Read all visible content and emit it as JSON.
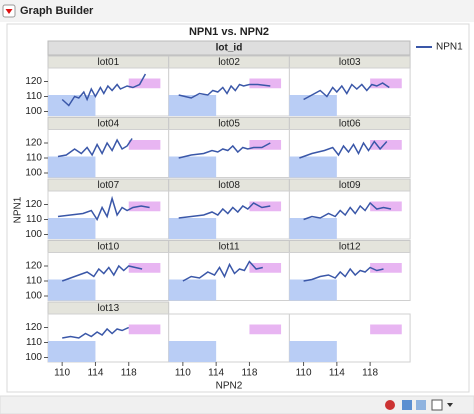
{
  "window": {
    "title": "Graph Builder"
  },
  "chart_data": {
    "type": "line",
    "title": "NPN1 vs. NPN2",
    "x_label": "NPN2",
    "y_label": "NPN1",
    "facet_label": "lot_id",
    "legend_label": "NPN1",
    "color": "#3a57a8",
    "xlim": [
      108.3,
      122.8
    ],
    "xticks": [
      110,
      114,
      118
    ],
    "ylim": [
      97,
      129
    ],
    "yticks": [
      100,
      110,
      120
    ],
    "regions": [
      {
        "xlim": [
          108.3,
          114
        ],
        "ylim": [
          97,
          111
        ],
        "color": "#b9cdf5"
      },
      {
        "xlim": [
          118,
          121.8
        ],
        "ylim": [
          115.5,
          122
        ],
        "color": "#e8b5f2"
      }
    ],
    "panels": [
      {
        "lot": "lot01",
        "x": [
          110,
          110.8,
          111.5,
          112,
          112.6,
          113,
          113.5,
          114,
          114.6,
          115,
          115.5,
          116,
          116.6,
          117,
          117.8,
          118.5,
          119.3,
          120
        ],
        "values": [
          108,
          104,
          110,
          109,
          113,
          108,
          115,
          110,
          116,
          112,
          117,
          114,
          118,
          115,
          117,
          116,
          118,
          125
        ]
      },
      {
        "lot": "lot02",
        "x": [
          109.5,
          111,
          112,
          113,
          113.6,
          114.2,
          114.8,
          115.3,
          115.8,
          116.3,
          116.8,
          117.3,
          118,
          119,
          120.5
        ],
        "values": [
          111,
          109,
          112,
          111,
          114,
          113,
          116,
          112,
          117,
          114,
          118,
          117,
          118,
          118,
          117
        ]
      },
      {
        "lot": "lot03",
        "x": [
          110,
          111,
          112,
          112.8,
          113.5,
          114,
          114.6,
          115.2,
          115.8,
          116.4,
          117,
          117.6,
          118.2,
          118.8,
          119.5,
          120.3
        ],
        "values": [
          108,
          111,
          114,
          110,
          116,
          113,
          117,
          112,
          118,
          115,
          118,
          114,
          118,
          117,
          119,
          116
        ]
      },
      {
        "lot": "lot04",
        "x": [
          109.5,
          110.5,
          111.5,
          112.3,
          113,
          113.6,
          114.2,
          114.8,
          115.4,
          116,
          116.6,
          117.2,
          117.8,
          118.4
        ],
        "values": [
          111,
          112,
          116,
          113,
          117,
          112,
          119,
          113,
          120,
          115,
          122,
          116,
          118,
          123
        ]
      },
      {
        "lot": "lot05",
        "x": [
          109.5,
          111,
          112.5,
          113.5,
          114.2,
          114.8,
          115.4,
          116,
          116.6,
          117.2,
          117.8,
          118.5,
          119.5,
          120.5
        ],
        "values": [
          110,
          112,
          113,
          115,
          114,
          116,
          115,
          118,
          114,
          117,
          116,
          117,
          117,
          120
        ]
      },
      {
        "lot": "lot06",
        "x": [
          109.5,
          111,
          112.5,
          113.5,
          114.2,
          114.8,
          115.4,
          116,
          116.6,
          117.2,
          117.8,
          118.5,
          119.2,
          120
        ],
        "values": [
          110,
          113,
          115,
          117,
          112,
          118,
          114,
          119,
          113,
          120,
          115,
          121,
          116,
          121
        ]
      },
      {
        "lot": "lot07",
        "x": [
          109.5,
          111,
          112.5,
          113.5,
          114.2,
          114.8,
          115.4,
          116,
          116.6,
          117.2,
          117.8,
          118.5,
          119.5,
          120.5
        ],
        "values": [
          112,
          113,
          114,
          116,
          110,
          118,
          112,
          124,
          113,
          118,
          116,
          118,
          119,
          118
        ]
      },
      {
        "lot": "lot08",
        "x": [
          109.5,
          111,
          112.5,
          113.5,
          114.2,
          114.8,
          115.4,
          116,
          116.6,
          117.2,
          117.8,
          118.5,
          119.5,
          120.5
        ],
        "values": [
          111,
          112,
          113,
          115,
          113,
          117,
          114,
          118,
          115,
          119,
          117,
          121,
          118,
          119
        ]
      },
      {
        "lot": "lot09",
        "x": [
          110,
          111,
          112,
          113,
          113.8,
          114.4,
          115,
          115.6,
          116.2,
          116.8,
          117.4,
          118,
          118.8,
          119.6,
          120.5
        ],
        "values": [
          110,
          112,
          111,
          114,
          112,
          116,
          113,
          118,
          114,
          119,
          116,
          121,
          117,
          118,
          117
        ]
      },
      {
        "lot": "lot10",
        "x": [
          110,
          111,
          112,
          113,
          113.8,
          114.4,
          115,
          115.6,
          116.2,
          116.8,
          117.4,
          118,
          118.8,
          119.6
        ],
        "values": [
          110,
          112,
          114,
          116,
          113,
          118,
          115,
          119,
          114,
          120,
          117,
          120,
          119,
          118
        ]
      },
      {
        "lot": "lot11",
        "x": [
          110,
          111,
          112,
          113,
          113.8,
          114.4,
          115,
          115.6,
          116.2,
          116.8,
          117.4,
          118,
          118.8,
          119.6
        ],
        "values": [
          110,
          113,
          112,
          116,
          114,
          119,
          113,
          121,
          115,
          118,
          117,
          123,
          118,
          119
        ]
      },
      {
        "lot": "lot12",
        "x": [
          110,
          111,
          112,
          113,
          113.8,
          114.4,
          115,
          115.6,
          116.2,
          116.8,
          117.4,
          118,
          118.8,
          119.6
        ],
        "values": [
          110,
          111,
          113,
          114,
          112,
          116,
          113,
          118,
          114,
          117,
          116,
          119,
          117,
          118
        ]
      },
      {
        "lot": "lot13",
        "x": [
          110,
          111,
          112,
          112.8,
          113.5,
          114.2,
          114.8,
          115.4,
          116,
          116.6,
          117.2,
          118
        ],
        "values": [
          113,
          114,
          113,
          116,
          114,
          117,
          115,
          119,
          116,
          119,
          118,
          120
        ]
      }
    ]
  }
}
